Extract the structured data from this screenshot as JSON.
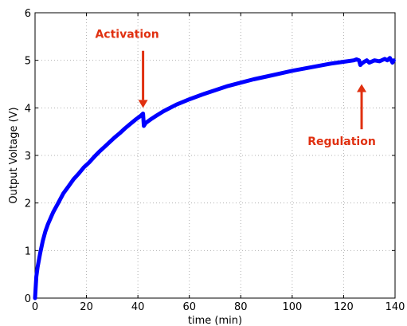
{
  "chart_data": {
    "type": "line",
    "title": "",
    "xlabel": "time (min)",
    "ylabel": "Output Voltage (V)",
    "xlim": [
      0,
      140
    ],
    "ylim": [
      0,
      6
    ],
    "xticks": [
      "0",
      "20",
      "40",
      "60",
      "80",
      "100",
      "120",
      "140"
    ],
    "yticks": [
      "0",
      "1",
      "2",
      "3",
      "4",
      "5",
      "6"
    ],
    "grid": true,
    "series": [
      {
        "color": "#0000ff",
        "x": [
          0,
          0.5,
          1,
          2,
          3,
          4,
          5,
          7,
          9,
          11,
          13,
          15,
          17,
          19,
          21,
          23,
          25,
          27,
          29,
          31,
          33,
          35,
          37,
          39,
          41,
          42,
          42.3,
          43,
          45,
          47,
          50,
          55,
          60,
          65,
          70,
          75,
          80,
          85,
          90,
          95,
          100,
          105,
          110,
          115,
          120,
          124,
          125,
          126,
          126.5,
          127,
          128,
          129,
          130,
          132,
          134,
          136,
          137,
          138,
          139,
          139.5
        ],
        "y": [
          0,
          0.45,
          0.65,
          0.95,
          1.2,
          1.4,
          1.55,
          1.8,
          2.0,
          2.2,
          2.35,
          2.5,
          2.62,
          2.75,
          2.85,
          2.97,
          3.08,
          3.18,
          3.28,
          3.38,
          3.47,
          3.57,
          3.66,
          3.75,
          3.83,
          3.88,
          3.62,
          3.68,
          3.76,
          3.83,
          3.93,
          4.07,
          4.18,
          4.28,
          4.37,
          4.46,
          4.53,
          4.6,
          4.66,
          4.72,
          4.78,
          4.83,
          4.88,
          4.93,
          4.97,
          5.0,
          5.02,
          5.0,
          4.9,
          4.93,
          4.97,
          5.0,
          4.95,
          5.0,
          4.98,
          5.03,
          5.0,
          5.05,
          4.95,
          5.0
        ]
      }
    ],
    "annotations": [
      {
        "text": "Activation",
        "color": "#e03010",
        "x": 42,
        "y_tip": 4.0,
        "y_tail": 5.2,
        "direction": "down"
      },
      {
        "text": "Regulation",
        "color": "#e03010",
        "x": 127,
        "y_tip": 4.5,
        "y_tail": 3.55,
        "direction": "up"
      }
    ]
  }
}
